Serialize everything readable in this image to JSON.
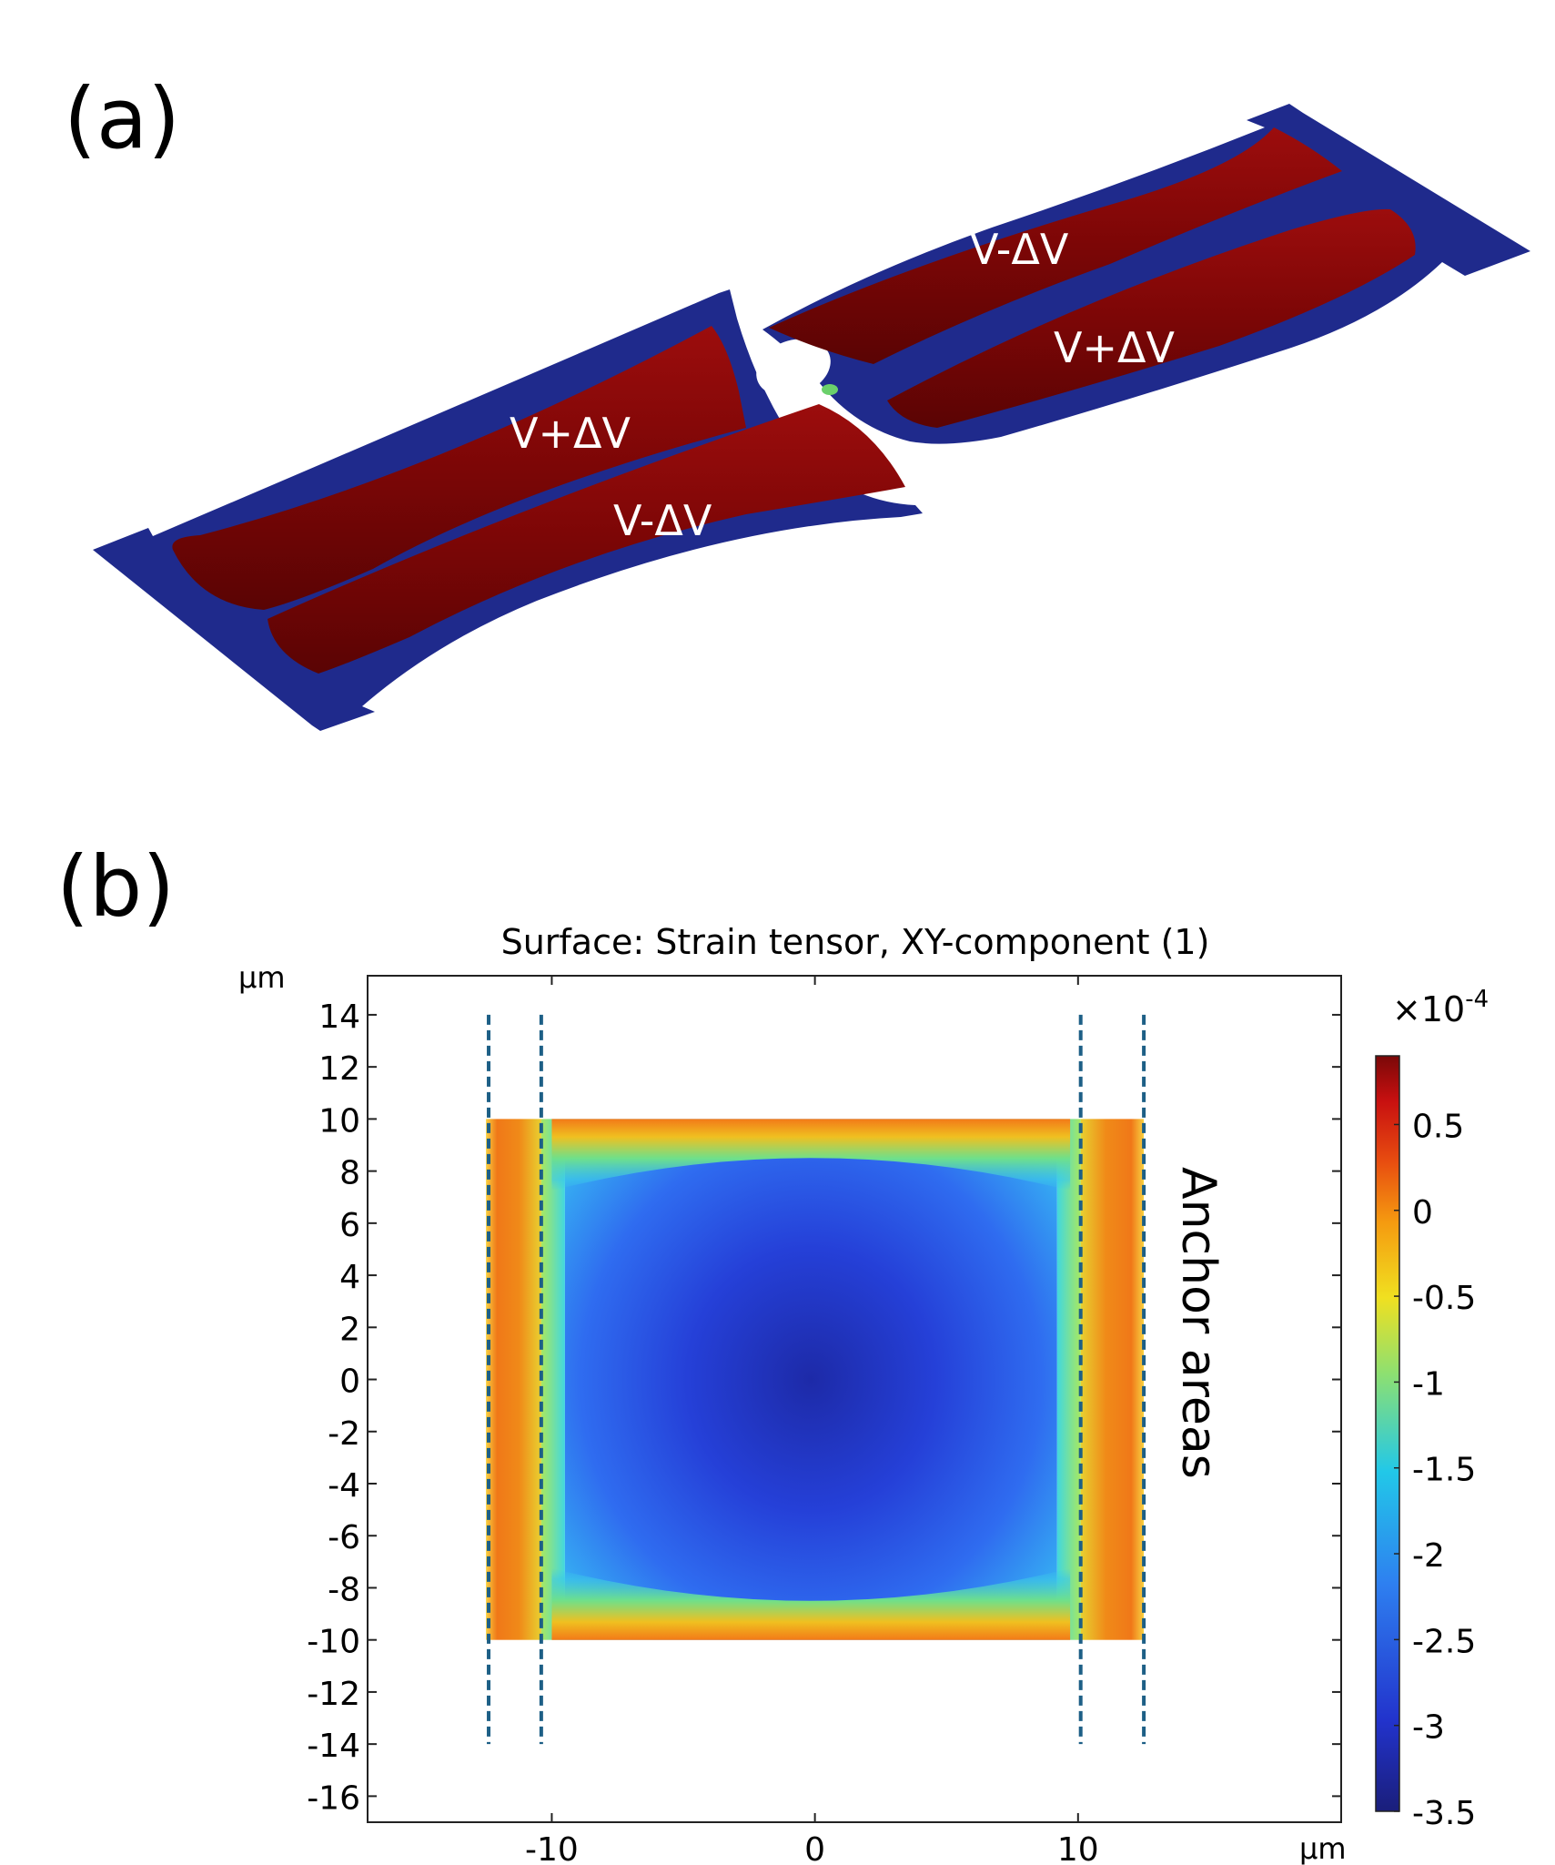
{
  "panel_a": {
    "label": "(a)",
    "electrode_labels": [
      "V-ΔV",
      "V+ΔV",
      "V+ΔV",
      "V-ΔV"
    ],
    "colors": {
      "frame": "#1f2a8c",
      "electrode": "#8b0a0a",
      "electrode_dark": "#5e0505"
    }
  },
  "panel_b": {
    "label": "(b)",
    "title": "Surface: Strain tensor, XY-component (1)",
    "x_unit": "µm",
    "y_unit": "µm",
    "annotation": "Anchor areas",
    "colorbar": {
      "multiplier": "×10",
      "exponent": "-4",
      "ticks": [
        "0.5",
        "0",
        "-0.5",
        "-1",
        "-1.5",
        "-2",
        "-2.5",
        "-3",
        "-3.5"
      ]
    }
  },
  "chart_data": {
    "type": "heatmap",
    "title": "Surface: Strain tensor, XY-component (1)",
    "xlabel": "µm",
    "ylabel": "µm",
    "xlim": [
      -17,
      20
    ],
    "ylim": [
      -17,
      15.5
    ],
    "x_ticks": [
      -10,
      0,
      10
    ],
    "x_tick_labels": [
      "-10",
      "0",
      "10"
    ],
    "y_ticks": [
      14,
      12,
      10,
      8,
      6,
      4,
      2,
      0,
      -2,
      -4,
      -6,
      -8,
      -10,
      -12,
      -14,
      -16
    ],
    "y_tick_labels": [
      "14",
      "12",
      "10",
      "8",
      "6",
      "4",
      "2",
      "0",
      "-2",
      "-4",
      "-6",
      "-8",
      "-10",
      "-12",
      "-14",
      "-16"
    ],
    "region": {
      "x": [
        -12.5,
        12.5
      ],
      "y": [
        -10,
        10
      ]
    },
    "anchor_lines_x": [
      -12.4,
      -10.4,
      10.1,
      12.5
    ],
    "anchor_lines_y": [
      -14,
      14
    ],
    "colorbar_range": [
      -3.5,
      0.9
    ],
    "colorbar_scale": "1e-4",
    "colorbar_ticks": [
      0.5,
      0,
      -0.5,
      -1,
      -1.5,
      -2,
      -2.5,
      -3,
      -3.5
    ],
    "annotation": "Anchor areas",
    "grid": false
  }
}
